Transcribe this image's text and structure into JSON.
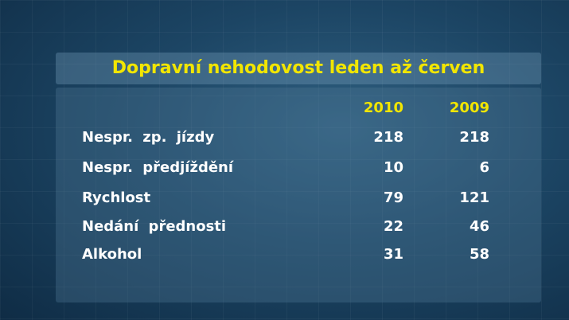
{
  "title": "Dopravní nehodovost leden až červen",
  "table": {
    "columns": [
      "2010",
      "2009"
    ],
    "rows": [
      [
        "Nespr. zp. jízdy",
        218,
        218
      ],
      [
        "Nespr. předjíždění",
        10,
        6
      ],
      [
        "Rychlost",
        79,
        121
      ],
      [
        "Nedání přednosti",
        22,
        46
      ],
      [
        "Alkohol",
        31,
        58
      ]
    ]
  }
}
